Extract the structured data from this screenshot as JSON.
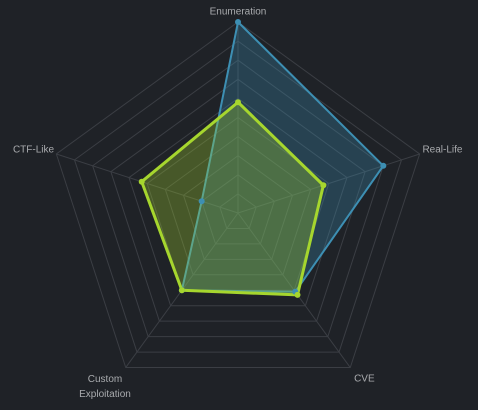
{
  "chart_data": {
    "type": "radar",
    "categories": [
      "Enumeration",
      "Real-Life",
      "CVE",
      "Custom Exploitation",
      "CTF-Like"
    ],
    "series": [
      {
        "color": "#3d8fb3",
        "values": [
          10,
          8,
          5.1,
          5,
          2
        ]
      },
      {
        "color": "#a6d62e",
        "values": [
          5.8,
          4.7,
          5.3,
          5,
          5.3
        ]
      }
    ],
    "rlim": [
      0,
      10
    ],
    "rticks": [
      1,
      2,
      3,
      4,
      5,
      6,
      7,
      8,
      9,
      10
    ],
    "grid": true
  }
}
